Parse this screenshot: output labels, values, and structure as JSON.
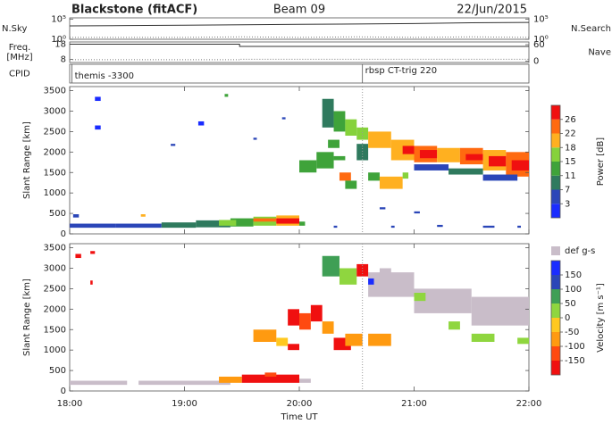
{
  "header": {
    "title": "Blackstone (fitACF)",
    "beam": "Beam 09",
    "date": "22/Jun/2015"
  },
  "chart_data": [
    {
      "type": "line",
      "ylabel": "N.Sky",
      "y2label": "N.Search",
      "log": true,
      "xlim": [
        18,
        22
      ],
      "ylim": [
        1,
        200000
      ],
      "yticks": [
        {
          "value": 100000,
          "label": "10⁵"
        },
        {
          "value": 1,
          "label": "10⁰"
        }
      ],
      "y2lim": [
        1,
        200000
      ],
      "y2ticks": [
        {
          "value": 100000,
          "label": "10⁵"
        },
        {
          "value": 1,
          "label": "10⁰"
        }
      ],
      "x": [
        18,
        18.5,
        19,
        19.5,
        20,
        20.5,
        21,
        21.5,
        22
      ],
      "series": [
        {
          "color": "#333333",
          "values": [
            2000,
            2500,
            3000,
            4000,
            5000,
            6000,
            8000,
            12000,
            15000
          ]
        },
        {
          "color": "#777777",
          "dash": true,
          "axis": "y2",
          "values": [
            3,
            3,
            3,
            4,
            3,
            4,
            3,
            4,
            3
          ]
        }
      ]
    },
    {
      "type": "line",
      "ylabel": [
        "Freq.",
        "[MHz]"
      ],
      "y2label": "Nave",
      "xlim": [
        18,
        22
      ],
      "ylim": [
        6,
        19.5
      ],
      "yticks": [
        18,
        8
      ],
      "y2lim": [
        -5,
        70
      ],
      "y2ticks": [
        60,
        0
      ],
      "x": [
        18,
        19.48,
        19.48,
        22
      ],
      "series": [
        {
          "color": "#333333",
          "values": [
            18,
            18,
            16.6,
            16.6
          ]
        },
        {
          "color": "#777777",
          "dash": true,
          "axis": "y2",
          "values": [
            5,
            5,
            7,
            7
          ]
        }
      ]
    },
    {
      "type": "cpid",
      "ylabel": "CPID",
      "xlim": [
        18,
        22
      ],
      "changes": [
        {
          "x": 18.02,
          "label": "themis -3300"
        },
        {
          "x": 20.55,
          "label": "rbsp CT-trig 220"
        }
      ]
    },
    {
      "type": "heatmap",
      "ylabel": "Slant Range [km]",
      "xlim": [
        18,
        22
      ],
      "xticks": [
        18,
        19,
        20,
        21,
        22
      ],
      "ylim": [
        0,
        3600
      ],
      "yticks": [
        0,
        500,
        1000,
        1500,
        2000,
        2500,
        3000,
        3500
      ],
      "colorbar": {
        "label": "Power [dB]",
        "ticks": [
          3,
          7,
          11,
          15,
          18,
          22,
          26
        ],
        "colors": [
          "#1a2cff",
          "#2b46b8",
          "#2f7a5e",
          "#3fa33a",
          "#86d23b",
          "#ffb020",
          "#ff6a10",
          "#f01010"
        ]
      },
      "cells": [
        [
          18.0,
          18.4,
          150,
          250,
          5
        ],
        [
          18.4,
          18.8,
          150,
          250,
          5
        ],
        [
          18.8,
          19.1,
          150,
          280,
          7
        ],
        [
          19.1,
          19.4,
          160,
          330,
          9
        ],
        [
          19.4,
          19.6,
          180,
          380,
          13
        ],
        [
          19.6,
          19.8,
          200,
          420,
          16
        ],
        [
          19.6,
          19.8,
          300,
          380,
          24
        ],
        [
          19.8,
          20.0,
          200,
          450,
          20
        ],
        [
          19.8,
          20.0,
          250,
          380,
          27
        ],
        [
          19.3,
          19.45,
          200,
          340,
          17
        ],
        [
          20.0,
          20.05,
          200,
          300,
          12
        ],
        [
          18.03,
          18.08,
          400,
          480,
          5
        ],
        [
          18.62,
          18.66,
          420,
          480,
          18
        ],
        [
          20.3,
          20.33,
          150,
          200,
          5
        ],
        [
          20.8,
          20.83,
          150,
          200,
          5
        ],
        [
          21.2,
          21.25,
          170,
          220,
          5
        ],
        [
          21.6,
          21.7,
          150,
          200,
          5
        ],
        [
          21.9,
          21.93,
          150,
          200,
          5
        ],
        [
          18.22,
          18.27,
          3250,
          3350,
          2
        ],
        [
          18.22,
          18.27,
          2550,
          2650,
          2
        ],
        [
          19.12,
          19.17,
          2650,
          2750,
          2
        ],
        [
          18.88,
          18.92,
          2150,
          2200,
          5
        ],
        [
          19.35,
          19.38,
          3350,
          3420,
          11
        ],
        [
          19.85,
          19.88,
          2800,
          2850,
          5
        ],
        [
          19.6,
          19.63,
          2300,
          2350,
          5
        ],
        [
          20.0,
          20.15,
          1500,
          1800,
          11
        ],
        [
          20.15,
          20.3,
          1600,
          2000,
          13
        ],
        [
          20.25,
          20.35,
          2100,
          2300,
          11
        ],
        [
          20.35,
          20.45,
          1300,
          1500,
          22
        ],
        [
          20.4,
          20.5,
          1100,
          1300,
          13
        ],
        [
          20.3,
          20.4,
          1800,
          1900,
          11
        ],
        [
          20.5,
          20.6,
          1800,
          2200,
          9
        ],
        [
          20.2,
          20.3,
          2600,
          3300,
          9
        ],
        [
          20.3,
          20.4,
          2500,
          3000,
          13
        ],
        [
          20.4,
          20.5,
          2400,
          2800,
          16
        ],
        [
          20.5,
          20.6,
          2300,
          2600,
          15
        ],
        [
          20.6,
          20.8,
          2100,
          2500,
          18
        ],
        [
          20.8,
          21.0,
          1800,
          2300,
          20
        ],
        [
          20.9,
          21.0,
          1950,
          2150,
          26
        ],
        [
          21.0,
          21.2,
          1750,
          2150,
          22
        ],
        [
          21.05,
          21.2,
          1850,
          2050,
          27
        ],
        [
          21.2,
          21.4,
          1750,
          2100,
          20
        ],
        [
          21.4,
          21.6,
          1700,
          2100,
          22
        ],
        [
          21.45,
          21.6,
          1800,
          1950,
          27
        ],
        [
          21.6,
          21.8,
          1550,
          2050,
          20
        ],
        [
          21.65,
          21.8,
          1650,
          1900,
          27
        ],
        [
          21.8,
          22.0,
          1400,
          2000,
          22
        ],
        [
          21.85,
          22.0,
          1550,
          1800,
          27
        ],
        [
          21.0,
          21.3,
          1550,
          1700,
          5
        ],
        [
          21.3,
          21.6,
          1450,
          1600,
          7
        ],
        [
          21.6,
          21.9,
          1300,
          1450,
          5
        ],
        [
          20.6,
          20.7,
          1300,
          1500,
          13
        ],
        [
          20.7,
          20.9,
          1100,
          1400,
          18
        ],
        [
          20.9,
          20.95,
          1350,
          1500,
          15
        ],
        [
          21.0,
          21.05,
          500,
          550,
          5
        ],
        [
          20.7,
          20.75,
          600,
          650,
          5
        ]
      ]
    },
    {
      "type": "heatmap",
      "ylabel": "Slant Range [km]",
      "xlabel": "Time UT",
      "xlim": [
        18,
        22
      ],
      "xticks": [
        {
          "value": 18,
          "label": "18:00"
        },
        {
          "value": 19,
          "label": "19:00"
        },
        {
          "value": 20,
          "label": "20:00"
        },
        {
          "value": 21,
          "label": "21:00"
        },
        {
          "value": 22,
          "label": "22:00"
        }
      ],
      "ylim": [
        0,
        3600
      ],
      "yticks": [
        0,
        500,
        1000,
        1500,
        2000,
        2500,
        3000,
        3500
      ],
      "colorbar": {
        "label": "Velocity [m s⁻¹]",
        "ticks": [
          150,
          100,
          50,
          0,
          -50,
          -100,
          -150
        ],
        "colors": [
          "#f01010",
          "#ff4a10",
          "#ff9a10",
          "#ffc820",
          "#8fd63f",
          "#3f9f55",
          "#2b46b8",
          "#1a2cff"
        ]
      },
      "ground_scatter": {
        "label": "def g-s",
        "color": "#c9bdc9",
        "cells": [
          [
            18.0,
            18.5,
            150,
            250
          ],
          [
            18.6,
            19.4,
            150,
            250
          ],
          [
            20.0,
            20.1,
            200,
            300
          ],
          [
            20.6,
            21.0,
            2300,
            2900
          ],
          [
            21.0,
            21.5,
            1900,
            2500
          ],
          [
            21.5,
            22.0,
            1600,
            2300
          ],
          [
            20.7,
            20.8,
            2700,
            3000
          ]
        ]
      },
      "cells": [
        [
          19.3,
          19.5,
          200,
          350,
          -80
        ],
        [
          19.5,
          20.0,
          200,
          400,
          -160
        ],
        [
          19.7,
          19.8,
          350,
          450,
          -120
        ],
        [
          18.05,
          18.1,
          3250,
          3350,
          -160
        ],
        [
          18.18,
          18.2,
          2600,
          2700,
          -160
        ],
        [
          18.18,
          18.22,
          3350,
          3420,
          -160
        ],
        [
          19.9,
          20.0,
          1600,
          2000,
          -160
        ],
        [
          20.0,
          20.1,
          1500,
          1900,
          -130
        ],
        [
          20.1,
          20.2,
          1700,
          2100,
          -160
        ],
        [
          20.2,
          20.3,
          1400,
          1700,
          -70
        ],
        [
          20.3,
          20.45,
          1000,
          1300,
          -160
        ],
        [
          20.4,
          20.55,
          1100,
          1400,
          -70
        ],
        [
          20.6,
          20.8,
          1100,
          1400,
          -80
        ],
        [
          19.8,
          19.9,
          1100,
          1300,
          -30
        ],
        [
          19.9,
          20.0,
          1000,
          1150,
          -160
        ],
        [
          19.6,
          19.8,
          1200,
          1500,
          -60
        ],
        [
          20.2,
          20.35,
          2800,
          3300,
          70
        ],
        [
          20.35,
          20.5,
          2600,
          3000,
          30
        ],
        [
          20.5,
          20.6,
          2800,
          3100,
          -160
        ],
        [
          20.6,
          20.65,
          2600,
          2750,
          150
        ],
        [
          21.0,
          21.1,
          2200,
          2400,
          20
        ],
        [
          21.3,
          21.4,
          1500,
          1700,
          10
        ],
        [
          21.5,
          21.7,
          1200,
          1400,
          30
        ],
        [
          21.9,
          22.0,
          1150,
          1300,
          20
        ]
      ]
    }
  ]
}
